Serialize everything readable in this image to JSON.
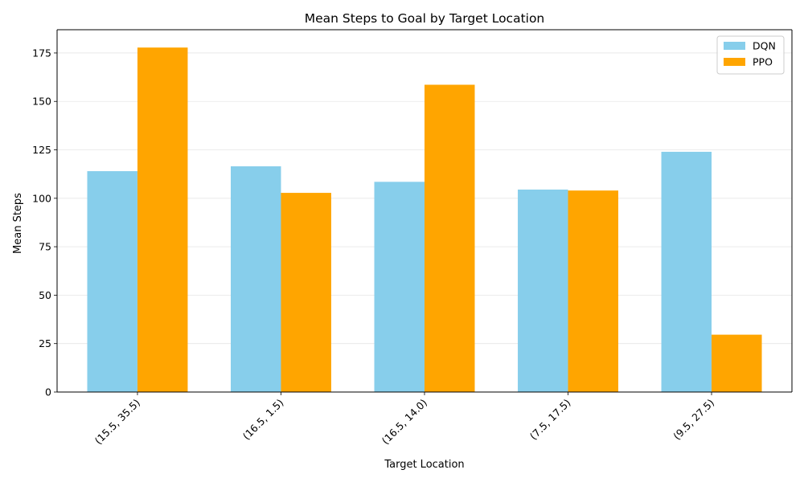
{
  "chart_data": {
    "type": "bar",
    "title": "Mean Steps to Goal by Target Location",
    "xlabel": "Target Location",
    "ylabel": "Mean Steps",
    "categories": [
      "(15.5, 35.5)",
      "(16.5, 1.5)",
      "(16.5, 14.0)",
      "(7.5, 17.5)",
      "(9.5, 27.5)"
    ],
    "series": [
      {
        "name": "DQN",
        "color": "#87ceeb",
        "values": [
          114,
          116.5,
          108.5,
          104.5,
          124
        ]
      },
      {
        "name": "PPO",
        "color": "#ffa500",
        "values": [
          177.8,
          102.8,
          158.6,
          104,
          29.6
        ]
      }
    ],
    "ylim": [
      0,
      187
    ],
    "yticks": [
      0,
      25,
      50,
      75,
      100,
      125,
      150,
      175
    ],
    "grid": "y",
    "legend_position": "top-right",
    "xtick_rotation": 45
  }
}
